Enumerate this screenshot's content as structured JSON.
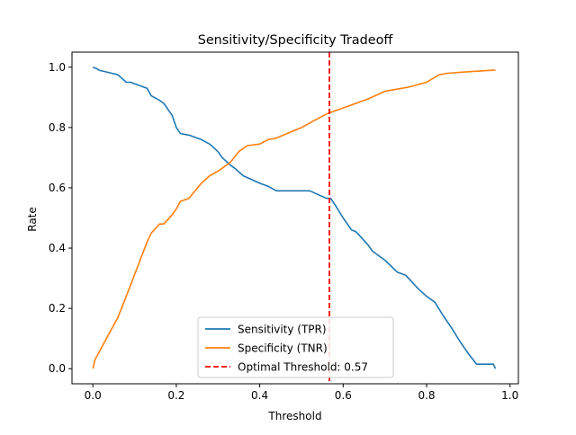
{
  "chart_data": {
    "type": "line",
    "title": "Sensitivity/Specificity Tradeoff",
    "xlabel": "Threshold",
    "ylabel": "Rate",
    "xlim": [
      -0.05,
      1.02
    ],
    "ylim": [
      -0.05,
      1.05
    ],
    "xticks": [
      0.0,
      0.2,
      0.4,
      0.6,
      0.8,
      1.0
    ],
    "xtick_labels": [
      "0.0",
      "0.2",
      "0.4",
      "0.6",
      "0.8",
      "1.0"
    ],
    "yticks": [
      0.0,
      0.2,
      0.4,
      0.6,
      0.8,
      1.0
    ],
    "ytick_labels": [
      "0.0",
      "0.2",
      "0.4",
      "0.6",
      "0.8",
      "1.0"
    ],
    "grid": false,
    "legend_position": "lower-center",
    "series": [
      {
        "name": "Sensitivity (TPR)",
        "color": "#1f77b4",
        "style": "solid",
        "x": [
          0.0,
          0.01,
          0.015,
          0.06,
          0.08,
          0.09,
          0.13,
          0.14,
          0.16,
          0.17,
          0.18,
          0.19,
          0.2,
          0.21,
          0.23,
          0.26,
          0.28,
          0.3,
          0.31,
          0.33,
          0.34,
          0.36,
          0.4,
          0.42,
          0.44,
          0.52,
          0.56,
          0.57,
          0.58,
          0.6,
          0.62,
          0.63,
          0.64,
          0.66,
          0.67,
          0.7,
          0.73,
          0.75,
          0.78,
          0.8,
          0.82,
          0.84,
          0.86,
          0.88,
          0.9,
          0.92,
          0.96,
          0.965
        ],
        "y": [
          1.0,
          0.995,
          0.99,
          0.975,
          0.95,
          0.95,
          0.93,
          0.905,
          0.89,
          0.88,
          0.86,
          0.84,
          0.8,
          0.78,
          0.775,
          0.76,
          0.745,
          0.72,
          0.7,
          0.675,
          0.665,
          0.64,
          0.615,
          0.605,
          0.59,
          0.59,
          0.565,
          0.565,
          0.545,
          0.5,
          0.46,
          0.455,
          0.44,
          0.41,
          0.39,
          0.36,
          0.32,
          0.31,
          0.265,
          0.24,
          0.22,
          0.175,
          0.135,
          0.09,
          0.05,
          0.015,
          0.015,
          0.0
        ]
      },
      {
        "name": "Specificity (TNR)",
        "color": "#ff7f0e",
        "style": "solid",
        "x": [
          0.0,
          0.005,
          0.06,
          0.08,
          0.13,
          0.14,
          0.16,
          0.17,
          0.19,
          0.2,
          0.21,
          0.23,
          0.26,
          0.28,
          0.3,
          0.31,
          0.33,
          0.35,
          0.37,
          0.4,
          0.42,
          0.44,
          0.5,
          0.52,
          0.56,
          0.58,
          0.6,
          0.64,
          0.66,
          0.7,
          0.74,
          0.76,
          0.8,
          0.83,
          0.85,
          0.9,
          0.96,
          0.965
        ],
        "y": [
          0.0,
          0.03,
          0.17,
          0.24,
          0.42,
          0.45,
          0.48,
          0.48,
          0.51,
          0.53,
          0.555,
          0.565,
          0.615,
          0.64,
          0.655,
          0.665,
          0.685,
          0.72,
          0.74,
          0.745,
          0.76,
          0.765,
          0.8,
          0.815,
          0.845,
          0.855,
          0.865,
          0.885,
          0.895,
          0.92,
          0.93,
          0.935,
          0.95,
          0.975,
          0.98,
          0.985,
          0.99,
          0.99
        ]
      },
      {
        "name": "Optimal Threshold: 0.57",
        "color": "#ff0000",
        "style": "dashed",
        "vline_x": 0.567
      }
    ]
  }
}
